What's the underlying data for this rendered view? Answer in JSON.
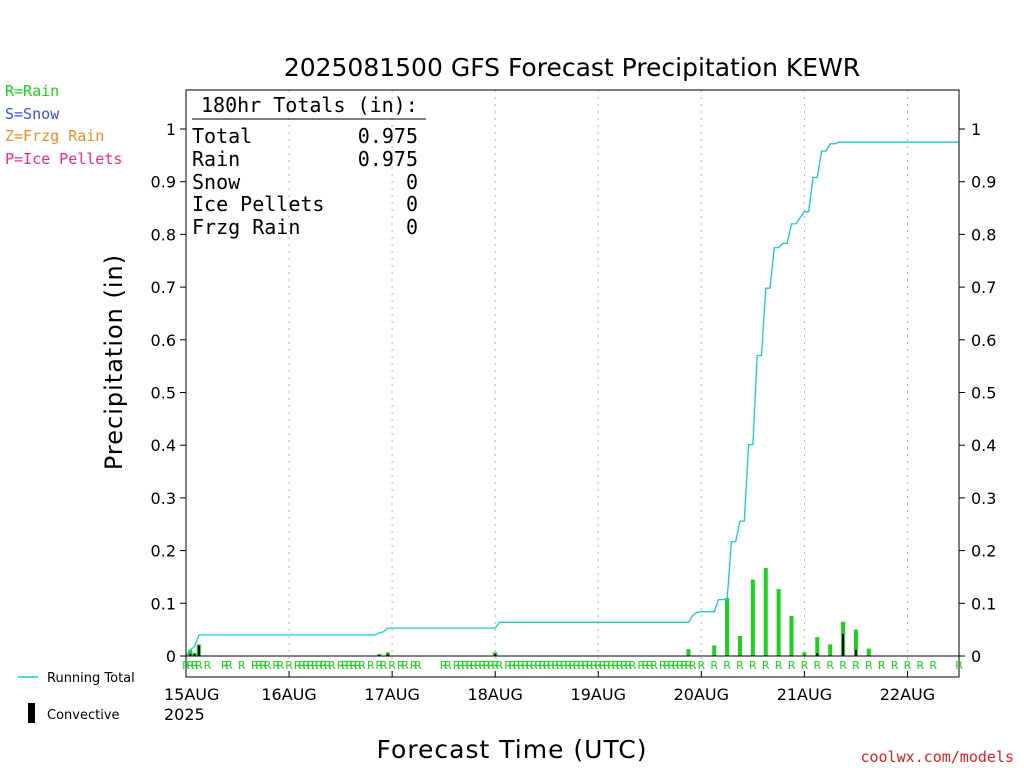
{
  "title": "2025081500 GFS Forecast Precipitation KEWR",
  "precip_type_legend": [
    {
      "label": "R=Rain",
      "color": "#1dd01d"
    },
    {
      "label": "S=Snow",
      "color": "#3a4ef0"
    },
    {
      "label": "Z=Frzg Rain",
      "color": "#f08a2a"
    },
    {
      "label": "P=Ice Pellets",
      "color": "#f02a8a"
    }
  ],
  "series_legend": {
    "running_total": {
      "label": "Running Total",
      "color": "#1ec8c8"
    },
    "convective": {
      "label": "Convective",
      "color": "#000000"
    }
  },
  "totals_box": {
    "header": "180hr Totals (in):",
    "rows": [
      {
        "label": "Total",
        "value": "0.975"
      },
      {
        "label": "Rain",
        "value": "0.975"
      },
      {
        "label": "Snow",
        "value": "0"
      },
      {
        "label": "Ice Pellets",
        "value": "0"
      },
      {
        "label": "Frzg Rain",
        "value": "0"
      }
    ]
  },
  "ylabel": "Precipitation (in)",
  "xlabel": "Forecast Time (UTC)",
  "year_label": "2025",
  "credit": "coolwx.com/models",
  "chart_data": {
    "type": "bar",
    "title": "2025081500 GFS Forecast Precipitation KEWR",
    "xlabel": "Forecast Time (UTC)",
    "ylabel": "Precipitation (in)",
    "xlim": [
      0,
      180
    ],
    "ylim": [
      0,
      1.05
    ],
    "grid": "vertical dotted lines at each day",
    "y_ticks": [
      "0",
      "0.1",
      "0.2",
      "0.3",
      "0.4",
      "0.5",
      "0.6",
      "0.7",
      "0.8",
      "0.9",
      "1"
    ],
    "y_tick_values": [
      0,
      0.1,
      0.2,
      0.3,
      0.4,
      0.5,
      0.6,
      0.7,
      0.8,
      0.9,
      1.0
    ],
    "x_ticks": [
      {
        "label": "15AUG",
        "hour": 0
      },
      {
        "label": "16AUG",
        "hour": 24
      },
      {
        "label": "17AUG",
        "hour": 48
      },
      {
        "label": "18AUG",
        "hour": 72
      },
      {
        "label": "19AUG",
        "hour": 96
      },
      {
        "label": "20AUG",
        "hour": 120
      },
      {
        "label": "21AUG",
        "hour": 144
      },
      {
        "label": "22AUG",
        "hour": 168
      }
    ],
    "bars": [
      {
        "hour": 1,
        "total": 0.012,
        "convective": 0.004
      },
      {
        "hour": 2,
        "total": 0.006,
        "convective": 0.004
      },
      {
        "hour": 3,
        "total": 0.022,
        "convective": 0.02
      },
      {
        "hour": 45,
        "total": 0.004,
        "convective": 0.002
      },
      {
        "hour": 47,
        "total": 0.007,
        "convective": 0.004
      },
      {
        "hour": 72,
        "total": 0.007,
        "convective": 0.004
      },
      {
        "hour": 117,
        "total": 0.013,
        "convective": 0.0
      },
      {
        "hour": 123,
        "total": 0.02,
        "convective": 0.0
      },
      {
        "hour": 126,
        "total": 0.11,
        "convective": 0.0
      },
      {
        "hour": 129,
        "total": 0.038,
        "convective": 0.0
      },
      {
        "hour": 132,
        "total": 0.145,
        "convective": 0.0
      },
      {
        "hour": 135,
        "total": 0.167,
        "convective": 0.0
      },
      {
        "hour": 138,
        "total": 0.127,
        "convective": 0.0
      },
      {
        "hour": 141,
        "total": 0.076,
        "convective": 0.0
      },
      {
        "hour": 144,
        "total": 0.007,
        "convective": 0.0
      },
      {
        "hour": 147,
        "total": 0.036,
        "convective": 0.005
      },
      {
        "hour": 150,
        "total": 0.022,
        "convective": 0.0
      },
      {
        "hour": 153,
        "total": 0.065,
        "convective": 0.042
      },
      {
        "hour": 156,
        "total": 0.05,
        "convective": 0.012
      },
      {
        "hour": 159,
        "total": 0.014,
        "convective": 0.0
      }
    ],
    "running_total": {
      "x": [
        0,
        1,
        2,
        3,
        44,
        45,
        46,
        47,
        72,
        73,
        117,
        118,
        119,
        120,
        123,
        124,
        126,
        127,
        128,
        129,
        130,
        131,
        132,
        133,
        134,
        135,
        136,
        137,
        138,
        139,
        140,
        141,
        142,
        144,
        145,
        146,
        147,
        148,
        149,
        150,
        151,
        152,
        153,
        154,
        155,
        156,
        157,
        158,
        159,
        160,
        165,
        180
      ],
      "y": [
        0,
        0.012,
        0.018,
        0.04,
        0.04,
        0.044,
        0.046,
        0.053,
        0.053,
        0.064,
        0.064,
        0.077,
        0.083,
        0.084,
        0.084,
        0.107,
        0.107,
        0.217,
        0.217,
        0.256,
        0.256,
        0.401,
        0.401,
        0.57,
        0.57,
        0.698,
        0.698,
        0.775,
        0.775,
        0.783,
        0.783,
        0.82,
        0.82,
        0.843,
        0.843,
        0.908,
        0.908,
        0.958,
        0.958,
        0.972,
        0.972,
        0.975,
        0.975,
        0.975,
        0.975,
        0.975,
        0.975,
        0.975,
        0.975,
        0.975,
        0.975,
        0.975
      ]
    },
    "precip_type_labels": {
      "text": "R",
      "hours": [
        0,
        1,
        2,
        3,
        5,
        9,
        10,
        13,
        16,
        17,
        18,
        19,
        21,
        22,
        24,
        26,
        27,
        28,
        29,
        30,
        31,
        32,
        33,
        34,
        36,
        37,
        38,
        39,
        40,
        41,
        43,
        45,
        46,
        48,
        50,
        51,
        53,
        54,
        60,
        61,
        63,
        64,
        65,
        66,
        67,
        68,
        69,
        70,
        71,
        72,
        73,
        75,
        76,
        77,
        78,
        79,
        80,
        81,
        82,
        83,
        84,
        85,
        86,
        87,
        88,
        89,
        90,
        91,
        92,
        93,
        94,
        95,
        96,
        97,
        98,
        99,
        100,
        101,
        102,
        103,
        104,
        106,
        107,
        108,
        109,
        111,
        112,
        113,
        114,
        115,
        116,
        117,
        118,
        120,
        123,
        126,
        129,
        132,
        135,
        138,
        141,
        144,
        147,
        150,
        153,
        156,
        159,
        162,
        165,
        168,
        171,
        174,
        180
      ]
    }
  }
}
